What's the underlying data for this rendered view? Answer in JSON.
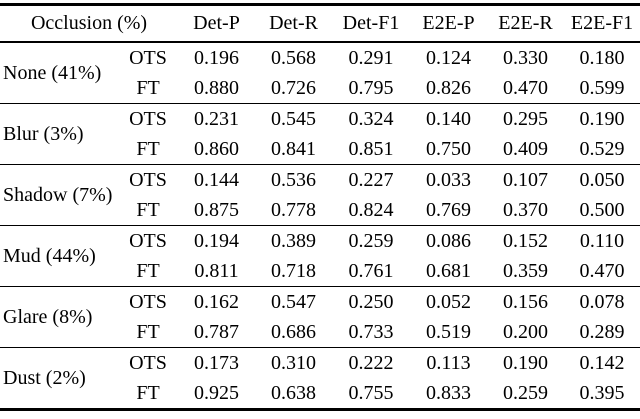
{
  "table": {
    "header": {
      "occlusion": "Occlusion (%)",
      "metrics": [
        "Det-P",
        "Det-R",
        "Det-F1",
        "E2E-P",
        "E2E-R",
        "E2E-F1"
      ]
    },
    "groups": [
      {
        "label": "None (41%)",
        "rows": [
          {
            "method": "OTS",
            "values": [
              "0.196",
              "0.568",
              "0.291",
              "0.124",
              "0.330",
              "0.180"
            ]
          },
          {
            "method": "FT",
            "values": [
              "0.880",
              "0.726",
              "0.795",
              "0.826",
              "0.470",
              "0.599"
            ]
          }
        ]
      },
      {
        "label": "Blur (3%)",
        "rows": [
          {
            "method": "OTS",
            "values": [
              "0.231",
              "0.545",
              "0.324",
              "0.140",
              "0.295",
              "0.190"
            ]
          },
          {
            "method": "FT",
            "values": [
              "0.860",
              "0.841",
              "0.851",
              "0.750",
              "0.409",
              "0.529"
            ]
          }
        ]
      },
      {
        "label": "Shadow (7%)",
        "rows": [
          {
            "method": "OTS",
            "values": [
              "0.144",
              "0.536",
              "0.227",
              "0.033",
              "0.107",
              "0.050"
            ]
          },
          {
            "method": "FT",
            "values": [
              "0.875",
              "0.778",
              "0.824",
              "0.769",
              "0.370",
              "0.500"
            ]
          }
        ]
      },
      {
        "label": "Mud (44%)",
        "rows": [
          {
            "method": "OTS",
            "values": [
              "0.194",
              "0.389",
              "0.259",
              "0.086",
              "0.152",
              "0.110"
            ]
          },
          {
            "method": "FT",
            "values": [
              "0.811",
              "0.718",
              "0.761",
              "0.681",
              "0.359",
              "0.470"
            ]
          }
        ]
      },
      {
        "label": "Glare (8%)",
        "rows": [
          {
            "method": "OTS",
            "values": [
              "0.162",
              "0.547",
              "0.250",
              "0.052",
              "0.156",
              "0.078"
            ]
          },
          {
            "method": "FT",
            "values": [
              "0.787",
              "0.686",
              "0.733",
              "0.519",
              "0.200",
              "0.289"
            ]
          }
        ]
      },
      {
        "label": "Dust (2%)",
        "rows": [
          {
            "method": "OTS",
            "values": [
              "0.173",
              "0.310",
              "0.222",
              "0.113",
              "0.190",
              "0.142"
            ]
          },
          {
            "method": "FT",
            "values": [
              "0.925",
              "0.638",
              "0.755",
              "0.833",
              "0.259",
              "0.395"
            ]
          }
        ]
      }
    ]
  },
  "colors": {
    "text": "#000000",
    "rule": "#000000",
    "background": "#ffffff"
  }
}
